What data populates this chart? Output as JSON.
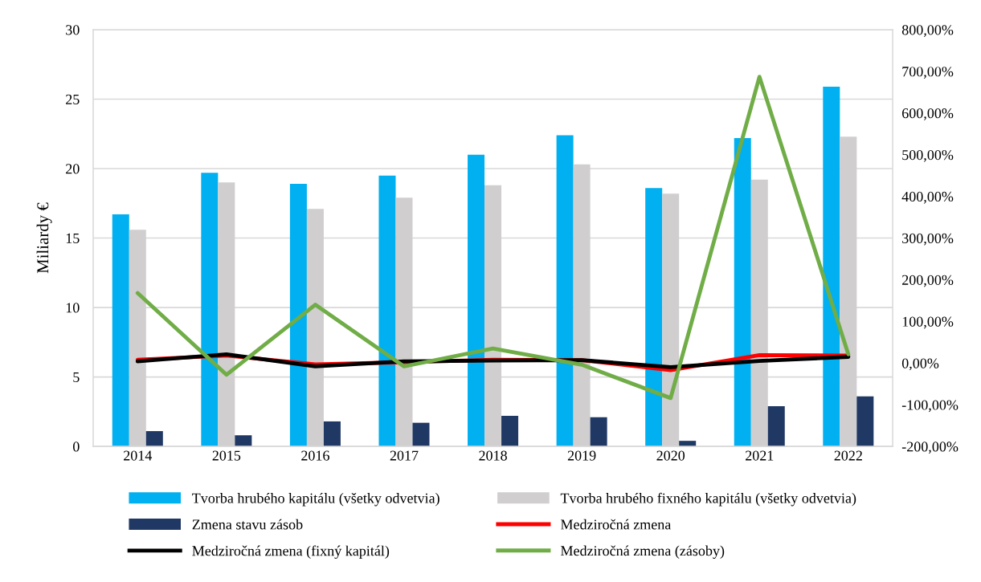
{
  "chart_data": {
    "type": "bar",
    "ylabel": "Miliardy €",
    "categories": [
      "2014",
      "2015",
      "2016",
      "2017",
      "2018",
      "2019",
      "2020",
      "2021",
      "2022"
    ],
    "series": [
      {
        "name": "Tvorba hrubého kapitálu (všetky odvetvia)",
        "color": "#00b0f0",
        "values": [
          16.7,
          19.7,
          18.9,
          19.5,
          21.0,
          22.4,
          18.6,
          22.2,
          25.9
        ]
      },
      {
        "name": "Tvorba hrubého fixného kapitálu (všetky odvetvia)",
        "color": "#d0cece",
        "values": [
          15.6,
          19.0,
          17.1,
          17.9,
          18.8,
          20.3,
          18.2,
          19.2,
          22.3
        ]
      },
      {
        "name": "Zmena stavu zásob",
        "color": "#203864",
        "values": [
          1.1,
          0.8,
          1.8,
          1.7,
          2.2,
          2.1,
          0.4,
          2.9,
          3.6
        ]
      },
      {
        "name": "Medziročná zmena",
        "type": "line",
        "axis": "y2",
        "color": "#ff0000",
        "values": [
          8,
          18,
          -3,
          2,
          8,
          7,
          -17,
          19,
          18
        ]
      },
      {
        "name": "Medziročná zmena (fixný kapitál)",
        "type": "line",
        "axis": "y2",
        "color": "#000000",
        "values": [
          4,
          21,
          -8,
          4,
          6,
          7,
          -10,
          5,
          15
        ]
      },
      {
        "name": "Medziročná zmena (zásoby)",
        "type": "line",
        "axis": "y2",
        "color": "#70ad47",
        "values": [
          168,
          -28,
          140,
          -8,
          35,
          -4,
          -84,
          687,
          21
        ]
      }
    ],
    "ylim": [
      0,
      30
    ],
    "yticks": [
      0,
      5,
      10,
      15,
      20,
      25,
      30
    ],
    "y2lim": [
      -200,
      800
    ],
    "y2ticks": [
      {
        "value": -200,
        "label": "-200,00%"
      },
      {
        "value": -100,
        "label": "-100,00%"
      },
      {
        "value": 0,
        "label": "0,00%"
      },
      {
        "value": 100,
        "label": "100,00%"
      },
      {
        "value": 200,
        "label": "200,00%"
      },
      {
        "value": 300,
        "label": "300,00%"
      },
      {
        "value": 400,
        "label": "400,00%"
      },
      {
        "value": 500,
        "label": "500,00%"
      },
      {
        "value": 600,
        "label": "600,00%"
      },
      {
        "value": 700,
        "label": "700,00%"
      },
      {
        "value": 800,
        "label": "800,00%"
      }
    ],
    "grid": "y",
    "legend": "bottom",
    "marker": "none",
    "line_style": "solid"
  }
}
